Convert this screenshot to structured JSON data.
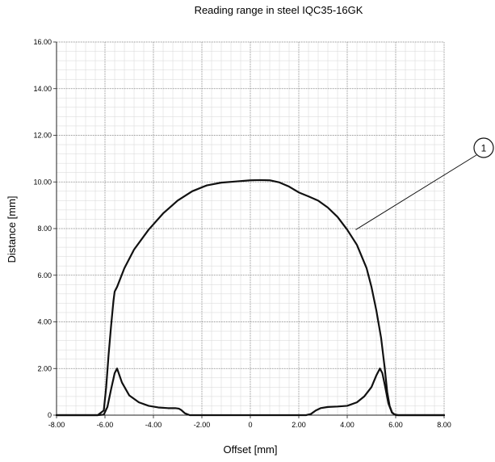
{
  "chart_data": {
    "type": "line",
    "title": "Reading range in steel IQC35-16GK",
    "xlabel": "Offset [mm]",
    "ylabel": "Distance [mm]",
    "xlim": [
      -8,
      8
    ],
    "ylim": [
      0,
      16
    ],
    "x_ticks": [
      "-8.00",
      "-6.00",
      "-4.00",
      "-2.00",
      "0",
      "2.00",
      "4.00",
      "6.00",
      "8.00"
    ],
    "y_ticks": [
      "0",
      "2.00",
      "4.00",
      "6.00",
      "8.00",
      "10.00",
      "12.00",
      "14.00",
      "16.00"
    ],
    "grid": true,
    "annotation": "1",
    "series": [
      {
        "color": "#111111",
        "x": [
          -8.0,
          -6.3,
          -6.05,
          -5.95,
          -5.85,
          -5.75,
          -5.65,
          -5.6,
          -5.5,
          -5.2,
          -4.8,
          -4.2,
          -3.6,
          -3.0,
          -2.4,
          -1.8,
          -1.2,
          -0.6,
          0.0,
          0.4,
          0.8,
          1.2,
          1.6,
          2.0,
          2.4,
          2.8,
          3.2,
          3.6,
          4.0,
          4.4,
          4.8,
          5.0,
          5.2,
          5.4,
          5.55,
          5.65,
          5.75,
          5.85,
          5.95,
          6.1,
          6.3,
          8.0
        ],
        "y": [
          0.0,
          0.0,
          0.2,
          1.2,
          2.6,
          3.8,
          4.9,
          5.3,
          5.5,
          6.3,
          7.1,
          7.95,
          8.65,
          9.2,
          9.6,
          9.85,
          9.97,
          10.02,
          10.07,
          10.08,
          10.07,
          9.98,
          9.8,
          9.55,
          9.38,
          9.2,
          8.9,
          8.5,
          7.95,
          7.3,
          6.3,
          5.5,
          4.5,
          3.3,
          2.0,
          1.0,
          0.4,
          0.12,
          0.03,
          0.0,
          0.0,
          0.0
        ]
      },
      {
        "color": "#111111",
        "x": [
          -8.0,
          -6.3,
          -6.05,
          -5.9,
          -5.75,
          -5.6,
          -5.5,
          -5.3,
          -5.0,
          -4.6,
          -4.2,
          -3.8,
          -3.4,
          -3.1,
          -2.95,
          -2.85,
          -2.7,
          -2.5,
          -2.0,
          0.0,
          2.0,
          2.3,
          2.5,
          2.7,
          2.9,
          3.2,
          3.6,
          4.0,
          4.4,
          4.7,
          5.0,
          5.2,
          5.35,
          5.45,
          5.55,
          5.7,
          5.85,
          6.0,
          6.3,
          8.0
        ],
        "y": [
          0.0,
          0.0,
          0.02,
          0.35,
          1.1,
          1.8,
          2.0,
          1.4,
          0.85,
          0.55,
          0.4,
          0.33,
          0.3,
          0.3,
          0.28,
          0.22,
          0.08,
          0.0,
          0.0,
          0.0,
          0.0,
          0.0,
          0.05,
          0.2,
          0.3,
          0.35,
          0.37,
          0.4,
          0.55,
          0.8,
          1.2,
          1.7,
          2.0,
          1.8,
          1.3,
          0.5,
          0.1,
          0.0,
          0.0,
          0.0
        ]
      }
    ]
  }
}
